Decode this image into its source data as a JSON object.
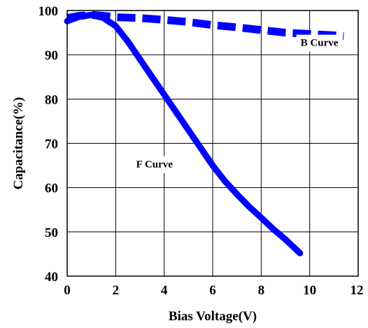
{
  "chart_data": {
    "type": "line",
    "title": "",
    "xlabel": "Bias Voltage(V)",
    "ylabel": "Capacitance(%)",
    "xlim": [
      0,
      12
    ],
    "ylim": [
      40,
      100
    ],
    "x_ticks": [
      0,
      2,
      4,
      6,
      8,
      10,
      12
    ],
    "y_ticks": [
      40,
      50,
      60,
      70,
      80,
      90,
      100
    ],
    "grid": true,
    "series": [
      {
        "name": "B Curve",
        "style": "dashed",
        "color": "#0000ff",
        "points": [
          [
            0,
            98.3
          ],
          [
            0.5,
            98.8
          ],
          [
            1,
            99.0
          ],
          [
            1.5,
            98.8
          ],
          [
            2,
            98.5
          ],
          [
            3,
            98.3
          ],
          [
            4,
            97.9
          ],
          [
            5,
            97.4
          ],
          [
            6,
            96.7
          ],
          [
            7,
            96.2
          ],
          [
            8,
            95.6
          ],
          [
            9,
            95.0
          ],
          [
            10,
            94.7
          ],
          [
            11,
            94.4
          ],
          [
            11.4,
            94.2
          ]
        ]
      },
      {
        "name": "F Curve",
        "style": "solid",
        "color": "#0000ff",
        "points": [
          [
            0,
            97.6
          ],
          [
            0.5,
            98.6
          ],
          [
            1,
            99.0
          ],
          [
            1.5,
            98.3
          ],
          [
            2,
            96.5
          ],
          [
            2.5,
            93.0
          ],
          [
            3,
            89.0
          ],
          [
            3.5,
            85.0
          ],
          [
            4,
            81.0
          ],
          [
            4.5,
            77.0
          ],
          [
            5,
            73.0
          ],
          [
            5.5,
            69.0
          ],
          [
            6,
            65.0
          ],
          [
            6.5,
            61.5
          ],
          [
            7,
            58.5
          ],
          [
            7.5,
            55.7
          ],
          [
            8,
            53.2
          ],
          [
            8.5,
            50.6
          ],
          [
            9,
            48.3
          ],
          [
            9.6,
            45.2
          ]
        ]
      }
    ],
    "annotations": [
      {
        "text": "B Curve",
        "series": "B Curve",
        "x": 10.4,
        "y": 92
      },
      {
        "text": "F Curve",
        "series": "F Curve",
        "x": 3.6,
        "y": 64.5
      }
    ]
  }
}
